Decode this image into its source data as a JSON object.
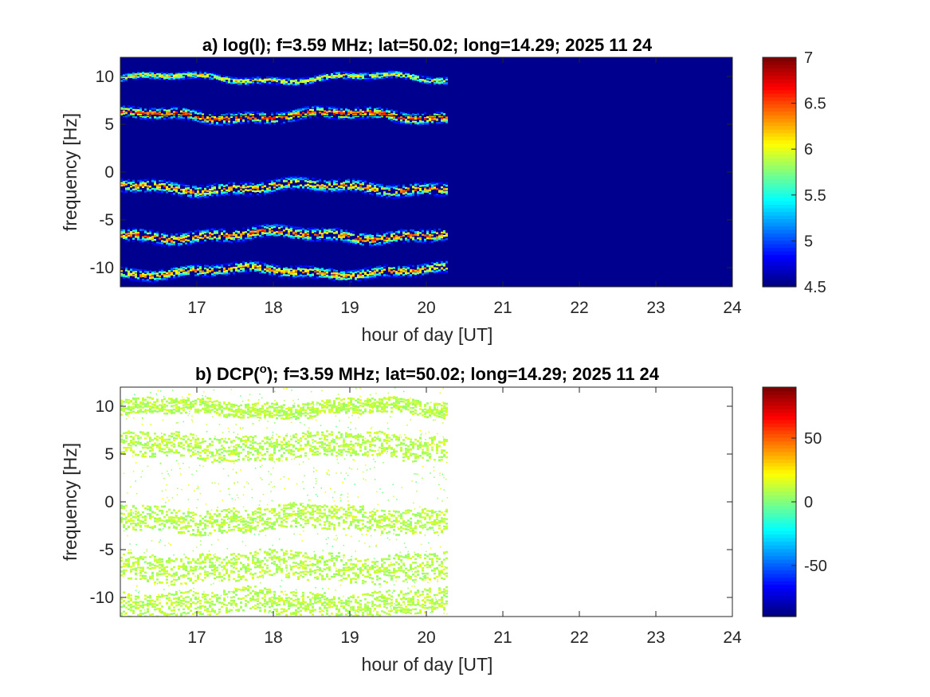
{
  "figure": {
    "bg_color": "#ffffff"
  },
  "chart_data": [
    {
      "type": "heatmap",
      "title": "a) log(I); f=3.59 MHz;  lat=50.02; long=14.29; 2025 11 24",
      "xlabel": "hour of day [UT]",
      "ylabel": "frequency [Hz]",
      "xlim": [
        16,
        24
      ],
      "ylim": [
        -12,
        12
      ],
      "x_ticks": [
        17,
        18,
        19,
        20,
        21,
        22,
        23,
        24
      ],
      "y_ticks": [
        -10,
        -5,
        0,
        5,
        10
      ],
      "background_color": "#00008f",
      "data_end_hour": 20.27,
      "colormap": "jet",
      "colorbar": {
        "range": [
          4.5,
          7
        ],
        "ticks": [
          "4.5",
          "5",
          "5.5",
          "6",
          "6.5",
          "7"
        ]
      },
      "bands": [
        {
          "center": 9.8,
          "width": 0.5,
          "value": 6.1
        },
        {
          "center": 5.9,
          "width": 0.8,
          "value": 6.5
        },
        {
          "center": -1.6,
          "width": 0.9,
          "value": 6.3
        },
        {
          "center": -6.6,
          "width": 0.9,
          "value": 6.4
        },
        {
          "center": -10.4,
          "width": 0.8,
          "value": 6.3
        }
      ],
      "reference_line_hz": 5.9
    },
    {
      "type": "heatmap",
      "title": "b) DCP(°); f=3.59 MHz;  lat=50.02; long=14.29; 2025 11 24",
      "title_prefix": "b) DCP(",
      "title_sup": "o",
      "title_suffix": "); f=3.59 MHz;  lat=50.02; long=14.29; 2025 11 24",
      "xlabel": "hour of day [UT]",
      "ylabel": "frequency [Hz]",
      "xlim": [
        16,
        24
      ],
      "ylim": [
        -12,
        12
      ],
      "x_ticks": [
        17,
        18,
        19,
        20,
        21,
        22,
        23,
        24
      ],
      "y_ticks": [
        -10,
        -5,
        0,
        5,
        10
      ],
      "background_color": "#ffffff",
      "data_end_hour": 20.27,
      "colormap": "jet",
      "colorbar": {
        "range": [
          -90,
          90
        ],
        "ticks": [
          "-50",
          "0",
          "50"
        ]
      },
      "typical_value": 10,
      "bands": [
        {
          "center": 9.8,
          "width": 1.0,
          "value": 10
        },
        {
          "center": 5.8,
          "width": 1.6,
          "value": 10
        },
        {
          "center": -1.8,
          "width": 1.6,
          "value": 10
        },
        {
          "center": -6.8,
          "width": 1.8,
          "value": 10
        },
        {
          "center": -10.6,
          "width": 1.6,
          "value": 10
        }
      ]
    }
  ]
}
